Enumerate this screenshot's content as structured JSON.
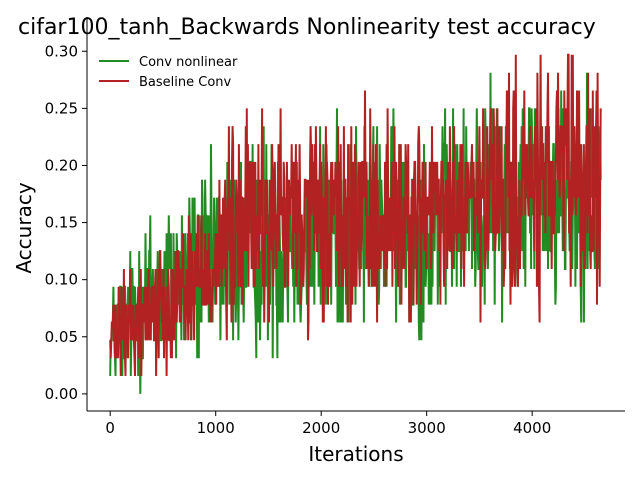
{
  "chart_data": {
    "type": "line",
    "title": "cifar100_tanh_Backwards Nonlinearity test accuracy",
    "xlabel": "Iterations",
    "ylabel": "Accuracy",
    "xlim": [
      -220,
      4880
    ],
    "ylim": [
      -0.015,
      0.33
    ],
    "xticks": [
      0,
      1000,
      2000,
      3000,
      4000
    ],
    "xtick_labels": [
      "0",
      "1000",
      "2000",
      "3000",
      "4000"
    ],
    "yticks": [
      0.0,
      0.05,
      0.1,
      0.15,
      0.2,
      0.25,
      0.3
    ],
    "ytick_labels": [
      "0.00",
      "0.05",
      "0.10",
      "0.15",
      "0.20",
      "0.25",
      "0.30"
    ],
    "grid": false,
    "legend_position": "top-left",
    "x_range": [
      0,
      4650
    ],
    "quantum": 0.015625,
    "series": [
      {
        "name": "Conv nonlinear",
        "color": "#228b22",
        "lower_envelope": [
          [
            0,
            0.0
          ],
          [
            500,
            0.0
          ],
          [
            1000,
            0.015625
          ],
          [
            1500,
            0.015625
          ],
          [
            2000,
            0.03125
          ],
          [
            2500,
            0.046875
          ],
          [
            3000,
            0.046875
          ],
          [
            3500,
            0.0625
          ],
          [
            4000,
            0.0625
          ],
          [
            4650,
            0.0625
          ]
        ],
        "upper_envelope": [
          [
            0,
            0.09375
          ],
          [
            300,
            0.171875
          ],
          [
            600,
            0.1875
          ],
          [
            1000,
            0.21875
          ],
          [
            1500,
            0.25
          ],
          [
            2000,
            0.25
          ],
          [
            2500,
            0.25
          ],
          [
            3000,
            0.25
          ],
          [
            3400,
            0.265625
          ],
          [
            4000,
            0.296875
          ],
          [
            4650,
            0.296875
          ]
        ]
      },
      {
        "name": "Baseline Conv",
        "color": "#b22222",
        "lower_envelope": [
          [
            0,
            0.0
          ],
          [
            500,
            0.015625
          ],
          [
            1000,
            0.03125
          ],
          [
            1500,
            0.046875
          ],
          [
            2000,
            0.046875
          ],
          [
            2500,
            0.046875
          ],
          [
            3000,
            0.0625
          ],
          [
            3500,
            0.0625
          ],
          [
            4000,
            0.0625
          ],
          [
            4650,
            0.0625
          ]
        ],
        "upper_envelope": [
          [
            0,
            0.09375
          ],
          [
            300,
            0.125
          ],
          [
            600,
            0.15625
          ],
          [
            900,
            0.1875
          ],
          [
            1200,
            0.25
          ],
          [
            1400,
            0.265625
          ],
          [
            2000,
            0.25
          ],
          [
            2500,
            0.265625
          ],
          [
            3000,
            0.25
          ],
          [
            3500,
            0.265625
          ],
          [
            3900,
            0.296875
          ],
          [
            4300,
            0.3125
          ],
          [
            4650,
            0.296875
          ]
        ]
      }
    ]
  }
}
